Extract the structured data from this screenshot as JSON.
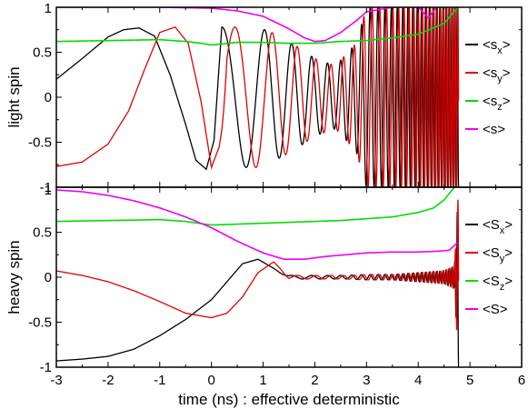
{
  "chart_data": {
    "type": "line",
    "xlabel": "time (ns) : effective deterministic",
    "xlim": [
      -3,
      6
    ],
    "x_ticks": [
      "-3",
      "-2",
      "-1",
      "0",
      "1",
      "2",
      "3",
      "4",
      "5",
      "6"
    ],
    "y_ticks": [
      "-1",
      "-0.5",
      "0",
      "0.5",
      "1"
    ],
    "panels": [
      {
        "ylabel": "light spin",
        "ylim": [
          -1,
          1
        ],
        "legend": [
          {
            "base": "<s",
            "sub": "x",
            "end": ">",
            "color": "#000000"
          },
          {
            "base": "<s",
            "sub": "y",
            "end": ">",
            "color": "#e00000"
          },
          {
            "base": "<s",
            "sub": "z",
            "end": ">",
            "color": "#00dd00"
          },
          {
            "base": "<s",
            "sub": "",
            "end": ">",
            "color": "#ee00ee"
          }
        ],
        "series": [
          {
            "key": "sx",
            "color": "#000000",
            "oscillating": true,
            "x": [
              -3.0,
              -2.5,
              -2.0,
              -1.7,
              -1.4,
              -1.1,
              -0.8,
              -0.5,
              -0.3,
              -0.1,
              0.05,
              0.2,
              0.4,
              0.6,
              0.85,
              1.1,
              1.4,
              1.7,
              2.0,
              2.4,
              2.8,
              3.0,
              3.5,
              4.0,
              4.5,
              4.75,
              4.78
            ],
            "amp": [
              0.0,
              0.0,
              0.0,
              0.0,
              0.0,
              0.0,
              0.0,
              0.0,
              0.0,
              0.0,
              0.0,
              0.78,
              0.78,
              0.78,
              0.78,
              0.74,
              0.65,
              0.55,
              0.43,
              0.35,
              0.6,
              1.0,
              1.0,
              1.0,
              1.0,
              1.0,
              1.0
            ],
            "base": [
              0.2,
              0.43,
              0.67,
              0.75,
              0.77,
              0.68,
              0.25,
              -0.3,
              -0.7,
              -0.8,
              -0.48,
              0.0,
              0.0,
              0.0,
              0.0,
              0.0,
              0.0,
              0.0,
              0.0,
              0.0,
              0.0,
              0.0,
              0.0,
              0.0,
              0.0,
              0.0,
              0.0
            ]
          },
          {
            "key": "sy",
            "color": "#e00000",
            "oscillating": true,
            "x": [
              -3.0,
              -2.5,
              -2.0,
              -1.6,
              -1.3,
              -1.0,
              -0.7,
              -0.45,
              -0.2,
              0.0,
              0.15,
              0.3,
              0.5,
              0.7,
              0.9,
              1.1,
              1.4,
              1.7,
              2.0,
              2.4,
              2.8,
              3.0,
              3.5,
              4.0,
              4.5,
              4.75,
              4.78
            ],
            "amp": [
              0.0,
              0.0,
              0.0,
              0.0,
              0.0,
              0.0,
              0.0,
              0.0,
              0.0,
              0.0,
              0.0,
              0.78,
              0.78,
              0.78,
              0.78,
              0.74,
              0.65,
              0.55,
              0.43,
              0.35,
              0.6,
              1.0,
              1.0,
              1.0,
              1.0,
              1.0,
              1.0
            ],
            "base": [
              -0.77,
              -0.72,
              -0.52,
              -0.15,
              0.3,
              0.72,
              0.78,
              0.6,
              -0.05,
              -0.78,
              -0.55,
              0.0,
              0.0,
              0.0,
              0.0,
              0.0,
              0.0,
              0.0,
              0.0,
              0.0,
              0.0,
              0.0,
              0.0,
              0.0,
              0.0,
              0.0,
              0.0
            ]
          },
          {
            "key": "sz",
            "color": "#00dd00",
            "x": [
              -3.0,
              -2.0,
              -1.0,
              -0.5,
              -0.2,
              0.0,
              0.5,
              1.0,
              1.5,
              2.0,
              2.5,
              3.0,
              3.5,
              4.0,
              4.5,
              4.75
            ],
            "y": [
              0.62,
              0.63,
              0.64,
              0.62,
              0.6,
              0.58,
              0.61,
              0.61,
              0.6,
              0.6,
              0.62,
              0.63,
              0.66,
              0.7,
              0.82,
              0.99
            ]
          },
          {
            "key": "s",
            "color": "#ee00ee",
            "x": [
              -3.0,
              -2.0,
              -1.0,
              0.0,
              0.5,
              1.0,
              1.5,
              1.8,
              2.0,
              2.2,
              2.5,
              2.8,
              3.0,
              3.5,
              4.0,
              4.2,
              4.35
            ],
            "y": [
              1.0,
              1.0,
              1.0,
              0.99,
              0.96,
              0.9,
              0.76,
              0.66,
              0.62,
              0.63,
              0.72,
              0.85,
              0.95,
              1.0,
              1.0,
              0.88,
              1.0
            ]
          }
        ]
      },
      {
        "ylabel": "heavy spin",
        "ylim": [
          -1,
          1
        ],
        "legend": [
          {
            "base": "<S",
            "sub": "x",
            "end": ">",
            "color": "#000000"
          },
          {
            "base": "<S",
            "sub": "y",
            "end": ">",
            "color": "#e00000"
          },
          {
            "base": "<S",
            "sub": "z",
            "end": ">",
            "color": "#00dd00"
          },
          {
            "base": "<S",
            "sub": "",
            "end": ">",
            "color": "#ee00ee"
          }
        ],
        "series": [
          {
            "key": "Sx",
            "color": "#000000",
            "oscillating": true,
            "x": [
              -3.0,
              -2.5,
              -2.0,
              -1.5,
              -1.0,
              -0.5,
              0.0,
              0.3,
              0.6,
              0.9,
              1.2,
              1.5,
              1.8,
              2.2,
              2.6,
              3.0,
              3.5,
              4.0,
              4.5,
              4.7,
              4.78
            ],
            "amp": [
              0.0,
              0.0,
              0.0,
              0.0,
              0.0,
              0.0,
              0.0,
              0.0,
              0.0,
              0.0,
              0.0,
              0.02,
              0.02,
              0.02,
              0.02,
              0.03,
              0.03,
              0.05,
              0.07,
              0.12,
              1.0
            ],
            "base": [
              -0.93,
              -0.91,
              -0.88,
              -0.8,
              -0.65,
              -0.47,
              -0.25,
              -0.05,
              0.15,
              0.2,
              0.1,
              0.0,
              0.0,
              0.0,
              0.0,
              0.0,
              0.0,
              0.0,
              0.0,
              0.0,
              0.0
            ]
          },
          {
            "key": "Sy",
            "color": "#e00000",
            "oscillating": true,
            "x": [
              -3.0,
              -2.5,
              -2.0,
              -1.5,
              -1.0,
              -0.5,
              0.0,
              0.3,
              0.6,
              0.9,
              1.2,
              1.5,
              1.8,
              2.2,
              2.6,
              3.0,
              3.5,
              4.0,
              4.5,
              4.7,
              4.78
            ],
            "amp": [
              0.0,
              0.0,
              0.0,
              0.0,
              0.0,
              0.0,
              0.0,
              0.0,
              0.0,
              0.0,
              0.0,
              0.02,
              0.02,
              0.02,
              0.02,
              0.03,
              0.03,
              0.05,
              0.07,
              0.12,
              1.0
            ],
            "base": [
              0.07,
              0.02,
              -0.05,
              -0.15,
              -0.27,
              -0.4,
              -0.45,
              -0.4,
              -0.22,
              0.05,
              0.17,
              0.0,
              0.0,
              0.0,
              0.0,
              0.0,
              0.0,
              0.0,
              0.0,
              0.0,
              0.0
            ]
          },
          {
            "key": "Sz",
            "color": "#00dd00",
            "x": [
              -3.0,
              -2.0,
              -1.0,
              -0.5,
              0.0,
              0.5,
              1.0,
              1.5,
              2.0,
              2.5,
              3.0,
              3.5,
              4.0,
              4.3,
              4.5,
              4.7
            ],
            "y": [
              0.62,
              0.63,
              0.64,
              0.62,
              0.58,
              0.59,
              0.6,
              0.61,
              0.62,
              0.63,
              0.65,
              0.67,
              0.72,
              0.77,
              0.86,
              1.0
            ]
          },
          {
            "key": "S",
            "color": "#ee00ee",
            "x": [
              -3.0,
              -2.5,
              -2.0,
              -1.5,
              -1.0,
              -0.5,
              0.0,
              0.5,
              1.0,
              1.4,
              1.8,
              2.2,
              2.6,
              3.0,
              3.5,
              4.0,
              4.4,
              4.6,
              4.75
            ],
            "y": [
              0.97,
              0.95,
              0.91,
              0.85,
              0.77,
              0.67,
              0.55,
              0.4,
              0.27,
              0.2,
              0.2,
              0.23,
              0.25,
              0.27,
              0.28,
              0.28,
              0.29,
              0.3,
              0.38
            ]
          }
        ]
      }
    ]
  }
}
